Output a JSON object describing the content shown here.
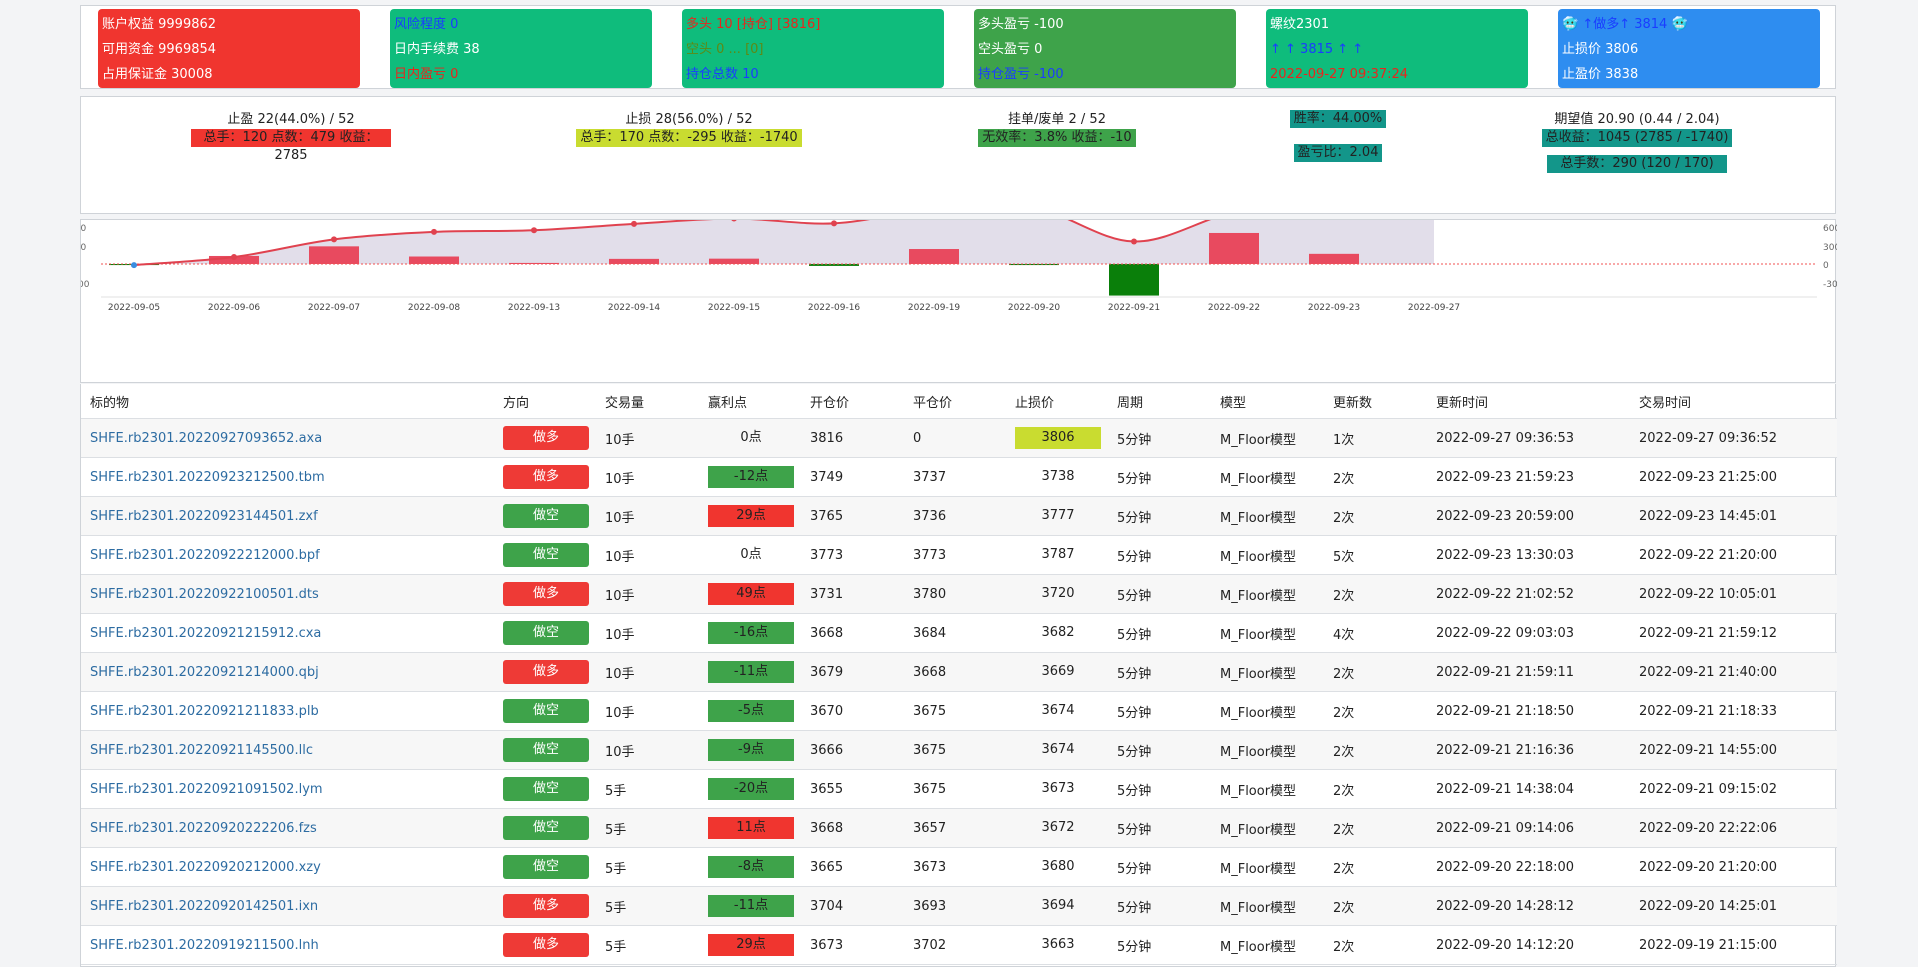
{
  "cards": [
    {
      "color": "red",
      "lines": [
        {
          "text": "账户权益 9999862",
          "tone": "white"
        },
        {
          "text": "可用资金 9969854",
          "tone": "white"
        },
        {
          "text": "占用保证金 30008",
          "tone": "white"
        }
      ]
    },
    {
      "color": "teal",
      "lines": [
        {
          "text": "风险程度 0",
          "tone": "blue"
        },
        {
          "text": "日内手续费 38",
          "tone": "white"
        },
        {
          "text": "日内盈亏 0",
          "tone": "red"
        }
      ]
    },
    {
      "color": "teal",
      "lines": [
        {
          "text": "多头 10 [持仓] [3816]",
          "tone": "red"
        },
        {
          "text": "空头 0 ... [0]",
          "tone": "olive"
        },
        {
          "text": "持仓总数 10",
          "tone": "blue"
        }
      ]
    },
    {
      "color": "green",
      "lines": [
        {
          "text": "多头盈亏 -100",
          "tone": "white"
        },
        {
          "text": "空头盈亏 0",
          "tone": "white"
        },
        {
          "text": "持仓盈亏 -100",
          "tone": "blue"
        }
      ]
    },
    {
      "color": "teal",
      "lines": [
        {
          "text": "螺纹2301",
          "tone": "white"
        },
        {
          "text": "↑ ↑ 3815 ↑ ↑",
          "tone": "blue"
        },
        {
          "text": "2022-09-27 09:37:24",
          "tone": "red"
        }
      ]
    },
    {
      "color": "blue",
      "lines": [
        {
          "text": "🥶 ↑做多↑ 3814 🥶",
          "tone": "blue"
        },
        {
          "text": "止损价 3806",
          "tone": "white"
        },
        {
          "text": "止盈价 3838",
          "tone": "white"
        }
      ]
    }
  ],
  "stats": {
    "takeprofit": {
      "title": "止盈 22(44.0%) / 52",
      "badge": "总手：120 点数：479 收益：2785"
    },
    "stoploss": {
      "title": "止损 28(56.0%) / 52",
      "badge": "总手：170 点数：-295 收益：-1740"
    },
    "pending": {
      "title": "挂单/废单 2 / 52",
      "badge": "无效率：3.8% 收益：-10"
    },
    "winrate": "胜率：44.00%",
    "plratio": "盈亏比：2.04",
    "expect": {
      "title": "期望值 20.90 (0.44 / 2.04)",
      "badge1": "总收益：1045 (2785 / -1740)",
      "badge2": "总手数：290 (120 / 170)"
    }
  },
  "chart_data": {
    "type": "bar+line",
    "categories": [
      "2022-09-05",
      "2022-09-06",
      "2022-09-07",
      "2022-09-08",
      "2022-09-13",
      "2022-09-14",
      "2022-09-15",
      "2022-09-16",
      "2022-09-19",
      "2022-09-20",
      "2022-09-21",
      "2022-09-22",
      "2022-09-23",
      "2022-09-27"
    ],
    "bar_values": [
      -10,
      75,
      165,
      70,
      10,
      48,
      50,
      -18,
      140,
      -10,
      -295,
      290,
      95,
      0
    ],
    "line_values": [
      -10,
      65,
      230,
      300,
      315,
      375,
      425,
      380,
      515,
      525,
      210,
      485,
      595,
      585
    ],
    "left_axis_ticks": [
      "900",
      "600",
      "300",
      "0",
      "-300"
    ],
    "right_axis_ticks": [
      "900",
      "600",
      "300",
      "0",
      "-300"
    ],
    "colors": {
      "up": "#e84a5f",
      "down": "#0a7f0a",
      "line": "#e0424f",
      "line_last": "#3a8de0",
      "area": "#ddd8e6",
      "zero": "#f05050"
    }
  },
  "table": {
    "headers": [
      "标的物",
      "方向",
      "交易量",
      "赢利点",
      "开仓价",
      "平仓价",
      "止损价",
      "周期",
      "模型",
      "更新数",
      "更新时间",
      "交易时间"
    ],
    "rows": [
      {
        "symbol": "SHFE.rb2301.20220927093652.axa",
        "dir": "做多",
        "qty": "10手",
        "pnl": "0点",
        "open": "3816",
        "close": "0",
        "stop": "3806",
        "period": "5分钟",
        "model": "M_Floor模型",
        "updates": "1次",
        "utime": "2022-09-27 09:36:53",
        "ttime": "2022-09-27 09:36:52"
      },
      {
        "symbol": "SHFE.rb2301.20220923212500.tbm",
        "dir": "做多",
        "qty": "10手",
        "pnl": "-12点",
        "open": "3749",
        "close": "3737",
        "stop": "3738",
        "period": "5分钟",
        "model": "M_Floor模型",
        "updates": "2次",
        "utime": "2022-09-23 21:59:23",
        "ttime": "2022-09-23 21:25:00"
      },
      {
        "symbol": "SHFE.rb2301.20220923144501.zxf",
        "dir": "做空",
        "qty": "10手",
        "pnl": "29点",
        "open": "3765",
        "close": "3736",
        "stop": "3777",
        "period": "5分钟",
        "model": "M_Floor模型",
        "updates": "2次",
        "utime": "2022-09-23 20:59:00",
        "ttime": "2022-09-23 14:45:01"
      },
      {
        "symbol": "SHFE.rb2301.20220922212000.bpf",
        "dir": "做空",
        "qty": "10手",
        "pnl": "0点",
        "open": "3773",
        "close": "3773",
        "stop": "3787",
        "period": "5分钟",
        "model": "M_Floor模型",
        "updates": "5次",
        "utime": "2022-09-23 13:30:03",
        "ttime": "2022-09-22 21:20:00"
      },
      {
        "symbol": "SHFE.rb2301.20220922100501.dts",
        "dir": "做多",
        "qty": "10手",
        "pnl": "49点",
        "open": "3731",
        "close": "3780",
        "stop": "3720",
        "period": "5分钟",
        "model": "M_Floor模型",
        "updates": "2次",
        "utime": "2022-09-22 21:02:52",
        "ttime": "2022-09-22 10:05:01"
      },
      {
        "symbol": "SHFE.rb2301.20220921215912.cxa",
        "dir": "做空",
        "qty": "10手",
        "pnl": "-16点",
        "open": "3668",
        "close": "3684",
        "stop": "3682",
        "period": "5分钟",
        "model": "M_Floor模型",
        "updates": "4次",
        "utime": "2022-09-22 09:03:03",
        "ttime": "2022-09-21 21:59:12"
      },
      {
        "symbol": "SHFE.rb2301.20220921214000.qbj",
        "dir": "做多",
        "qty": "10手",
        "pnl": "-11点",
        "open": "3679",
        "close": "3668",
        "stop": "3669",
        "period": "5分钟",
        "model": "M_Floor模型",
        "updates": "2次",
        "utime": "2022-09-21 21:59:11",
        "ttime": "2022-09-21 21:40:00"
      },
      {
        "symbol": "SHFE.rb2301.20220921211833.plb",
        "dir": "做空",
        "qty": "10手",
        "pnl": "-5点",
        "open": "3670",
        "close": "3675",
        "stop": "3674",
        "period": "5分钟",
        "model": "M_Floor模型",
        "updates": "2次",
        "utime": "2022-09-21 21:18:50",
        "ttime": "2022-09-21 21:18:33"
      },
      {
        "symbol": "SHFE.rb2301.20220921145500.llc",
        "dir": "做空",
        "qty": "10手",
        "pnl": "-9点",
        "open": "3666",
        "close": "3675",
        "stop": "3674",
        "period": "5分钟",
        "model": "M_Floor模型",
        "updates": "2次",
        "utime": "2022-09-21 21:16:36",
        "ttime": "2022-09-21 14:55:00"
      },
      {
        "symbol": "SHFE.rb2301.20220921091502.lym",
        "dir": "做空",
        "qty": "5手",
        "pnl": "-20点",
        "open": "3655",
        "close": "3675",
        "stop": "3673",
        "period": "5分钟",
        "model": "M_Floor模型",
        "updates": "2次",
        "utime": "2022-09-21 14:38:04",
        "ttime": "2022-09-21 09:15:02"
      },
      {
        "symbol": "SHFE.rb2301.20220920222206.fzs",
        "dir": "做空",
        "qty": "5手",
        "pnl": "11点",
        "open": "3668",
        "close": "3657",
        "stop": "3672",
        "period": "5分钟",
        "model": "M_Floor模型",
        "updates": "2次",
        "utime": "2022-09-21 09:14:06",
        "ttime": "2022-09-20 22:22:06"
      },
      {
        "symbol": "SHFE.rb2301.20220920212000.xzy",
        "dir": "做空",
        "qty": "5手",
        "pnl": "-8点",
        "open": "3665",
        "close": "3673",
        "stop": "3680",
        "period": "5分钟",
        "model": "M_Floor模型",
        "updates": "2次",
        "utime": "2022-09-20 22:18:00",
        "ttime": "2022-09-20 21:20:00"
      },
      {
        "symbol": "SHFE.rb2301.20220920142501.ixn",
        "dir": "做多",
        "qty": "5手",
        "pnl": "-11点",
        "open": "3704",
        "close": "3693",
        "stop": "3694",
        "period": "5分钟",
        "model": "M_Floor模型",
        "updates": "2次",
        "utime": "2022-09-20 14:28:12",
        "ttime": "2022-09-20 14:25:01"
      },
      {
        "symbol": "SHFE.rb2301.20220919211500.lnh",
        "dir": "做多",
        "qty": "5手",
        "pnl": "29点",
        "open": "3673",
        "close": "3702",
        "stop": "3663",
        "period": "5分钟",
        "model": "M_Floor模型",
        "updates": "2次",
        "utime": "2022-09-20 14:12:20",
        "ttime": "2022-09-19 21:15:00"
      }
    ]
  }
}
